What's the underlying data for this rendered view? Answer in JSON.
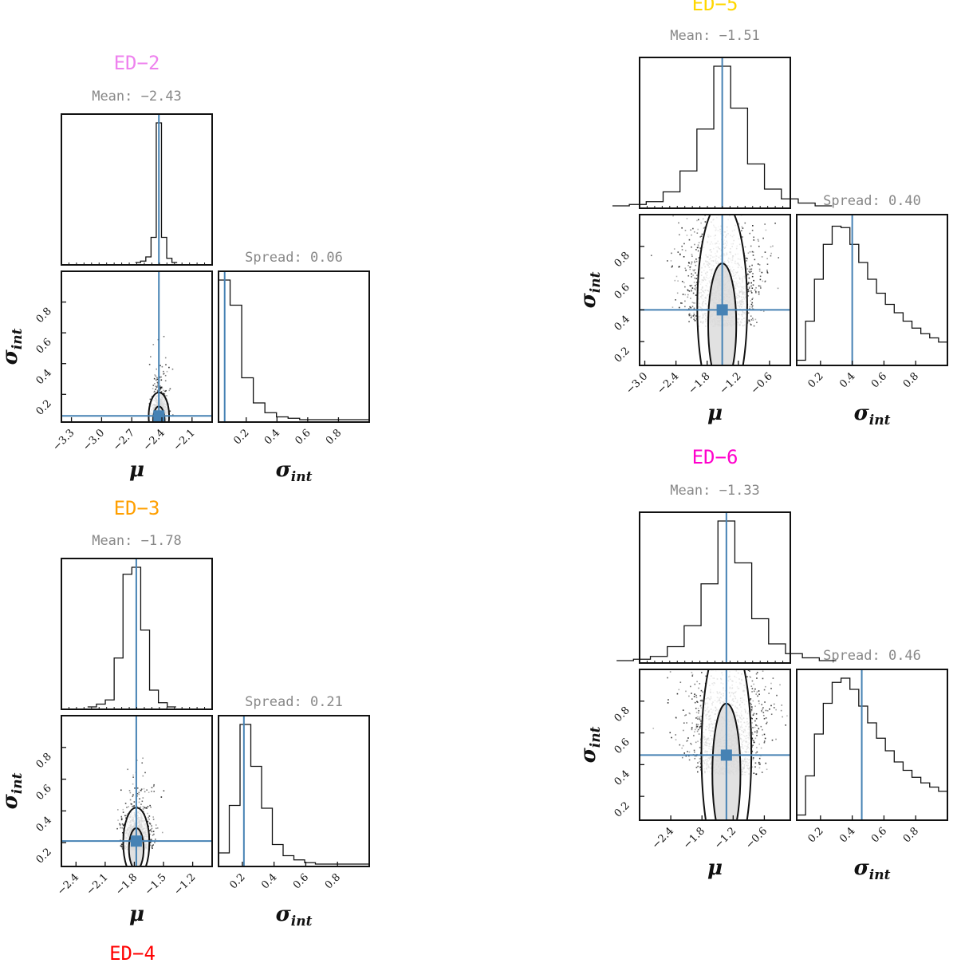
{
  "colors": {
    "truth": "#4682b4",
    "ink": "#111111",
    "stat_text": "#888888",
    "ED-2": "#ee82ee",
    "ED-3": "#ff9f00",
    "ED-4": "#ff0000",
    "ED-5": "#ffd700",
    "ED-6": "#ff00cc"
  },
  "axis_labels": {
    "mu": "μ",
    "sigma_main": "σ",
    "sigma_sub": "int"
  },
  "chart_data": [
    {
      "type": "corner",
      "title": "ED−2",
      "title_color": "#ee82ee",
      "mean_label": "Mean: −2.43",
      "spread_label": "Spread: 0.06",
      "mean": -2.43,
      "spread": 0.06,
      "mu_range": [
        -3.4,
        -1.9
      ],
      "mu_ticks": [
        "-3.3",
        "-3.0",
        "-2.7",
        "-2.4",
        "-2.1"
      ],
      "sigma_range": [
        0.02,
        1.0
      ],
      "sigma_ticks": [
        "0.2",
        "0.4",
        "0.6",
        "0.8"
      ],
      "mu_sd": 0.04,
      "sigma_mode": 0.03,
      "sigma_tail": 0.07,
      "hist_mu": [
        0.0,
        0.01,
        0.04,
        0.18,
        1.0,
        0.18,
        0.03,
        0.0
      ],
      "hist_sigma": [
        1.0,
        0.82,
        0.3,
        0.12,
        0.05,
        0.02,
        0.01,
        0.0,
        0.0,
        0.0,
        0.0,
        0.0,
        0.0
      ]
    },
    {
      "type": "corner",
      "title": "ED−3",
      "title_color": "#ff9f00",
      "mean_label": "Mean: −1.78",
      "spread_label": "Spread: 0.21",
      "mean": -1.78,
      "spread": 0.21,
      "mu_range": [
        -2.55,
        -1.0
      ],
      "mu_ticks": [
        "-2.4",
        "-2.1",
        "-1.8",
        "-1.5",
        "-1.2"
      ],
      "sigma_range": [
        0.05,
        1.0
      ],
      "sigma_ticks": [
        "0.2",
        "0.4",
        "0.6",
        "0.8"
      ],
      "mu_sd": 0.07,
      "sigma_mode": 0.16,
      "sigma_tail": 0.1,
      "hist_mu": [
        0.0,
        0.02,
        0.05,
        0.35,
        0.95,
        1.0,
        0.55,
        0.12,
        0.03,
        0.0
      ],
      "hist_sigma": [
        0.08,
        0.42,
        1.0,
        0.7,
        0.4,
        0.14,
        0.06,
        0.03,
        0.01,
        0.0,
        0.0,
        0.0,
        0.0,
        0.0
      ]
    },
    {
      "type": "corner",
      "title": "ED−4",
      "title_color": "#ff0000"
    },
    {
      "type": "corner",
      "title": "ED−5",
      "title_color": "#ffd700",
      "mean_label": "Mean: −1.51",
      "spread_label": "Spread: 0.40",
      "mean": -1.51,
      "spread": 0.4,
      "mu_range": [
        -3.1,
        -0.2
      ],
      "mu_ticks": [
        "-3.0",
        "-2.4",
        "-1.8",
        "-1.2",
        "-0.6"
      ],
      "sigma_range": [
        0.05,
        1.0
      ],
      "sigma_ticks": [
        "0.2",
        "0.4",
        "0.6",
        "0.8"
      ],
      "mu_sd": 0.25,
      "sigma_mode": 0.3,
      "sigma_tail": 0.3,
      "hist_mu": [
        0.0,
        0.01,
        0.03,
        0.1,
        0.25,
        0.55,
        1.0,
        0.7,
        0.3,
        0.12,
        0.05,
        0.02,
        0.0
      ],
      "hist_sigma": [
        0.02,
        0.3,
        0.6,
        0.85,
        0.98,
        0.97,
        0.85,
        0.72,
        0.6,
        0.5,
        0.42,
        0.36,
        0.3,
        0.25,
        0.21,
        0.18,
        0.15
      ]
    },
    {
      "type": "corner",
      "title": "ED−6",
      "title_color": "#ff00cc",
      "mean_label": "Mean: −1.33",
      "spread_label": "Spread: 0.46",
      "mean": -1.33,
      "spread": 0.46,
      "mu_range": [
        -3.0,
        -0.1
      ],
      "mu_ticks": [
        "-2.4",
        "-1.8",
        "-1.2",
        "-0.6"
      ],
      "sigma_range": [
        0.05,
        1.0
      ],
      "sigma_ticks": [
        "0.2",
        "0.4",
        "0.6",
        "0.8"
      ],
      "mu_sd": 0.25,
      "sigma_mode": 0.34,
      "sigma_tail": 0.34,
      "hist_mu": [
        0.0,
        0.01,
        0.03,
        0.1,
        0.25,
        0.55,
        1.0,
        0.7,
        0.3,
        0.12,
        0.05,
        0.02,
        0.0
      ],
      "hist_sigma": [
        0.02,
        0.3,
        0.6,
        0.82,
        0.97,
        1.0,
        0.92,
        0.8,
        0.68,
        0.57,
        0.48,
        0.4,
        0.34,
        0.29,
        0.25,
        0.22,
        0.19
      ]
    }
  ]
}
